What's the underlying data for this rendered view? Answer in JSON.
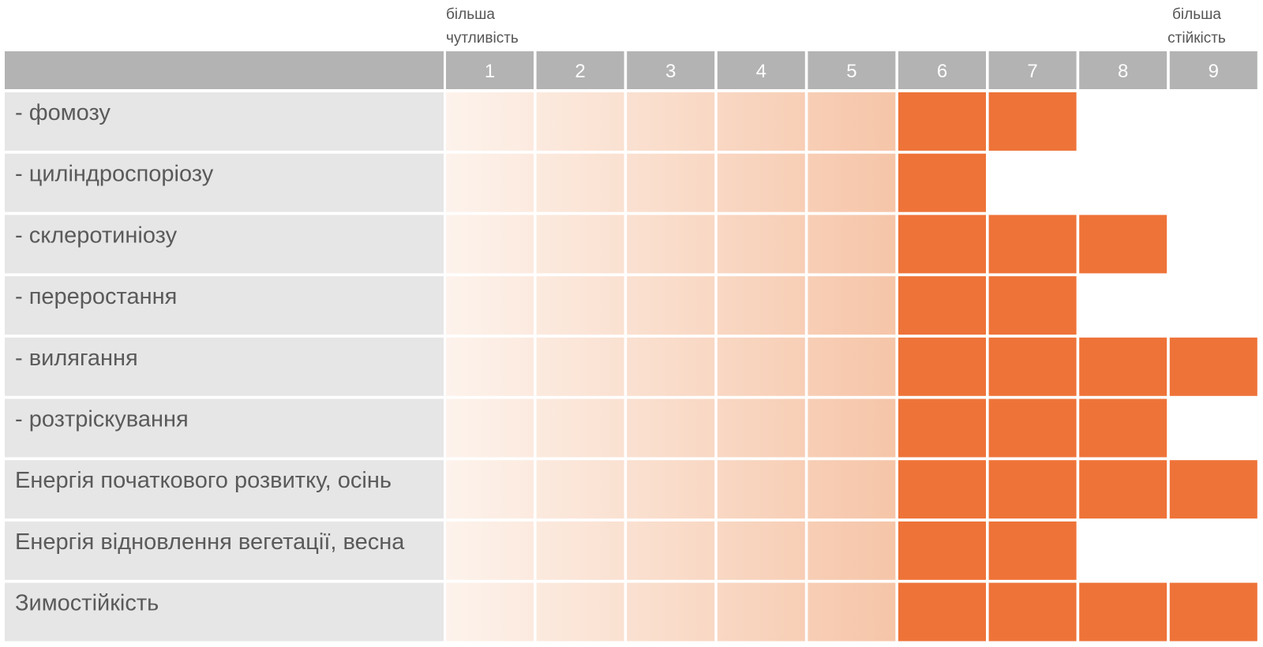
{
  "chart_data": {
    "type": "heatmap",
    "scale_left_label": [
      "більша",
      "чутливість"
    ],
    "scale_right_label": [
      "більша",
      "стійкість"
    ],
    "columns": [
      "1",
      "2",
      "3",
      "4",
      "5",
      "6",
      "7",
      "8",
      "9"
    ],
    "rows": [
      {
        "label": "- фомозу",
        "value": 7
      },
      {
        "label": "- циліндроспоріозу",
        "value": 6
      },
      {
        "label": "- склеротиніозу",
        "value": 8
      },
      {
        "label": "- переростання",
        "value": 7
      },
      {
        "label": "- вилягання",
        "value": 9
      },
      {
        "label": "- розтріскування",
        "value": 8
      },
      {
        "label": "Енергія початкового розвитку, осінь",
        "value": 9
      },
      {
        "label": "Енергія відновлення вегетації, весна",
        "value": 7
      },
      {
        "label": "Зимостійкість",
        "value": 9
      }
    ],
    "colors": {
      "header_bg": "#b3b3b3",
      "label_bg": "#e6e6e6",
      "filled": "#ee7338",
      "gradient_start": "#fdf3ec",
      "gradient_end": "#f6c5a8"
    }
  }
}
